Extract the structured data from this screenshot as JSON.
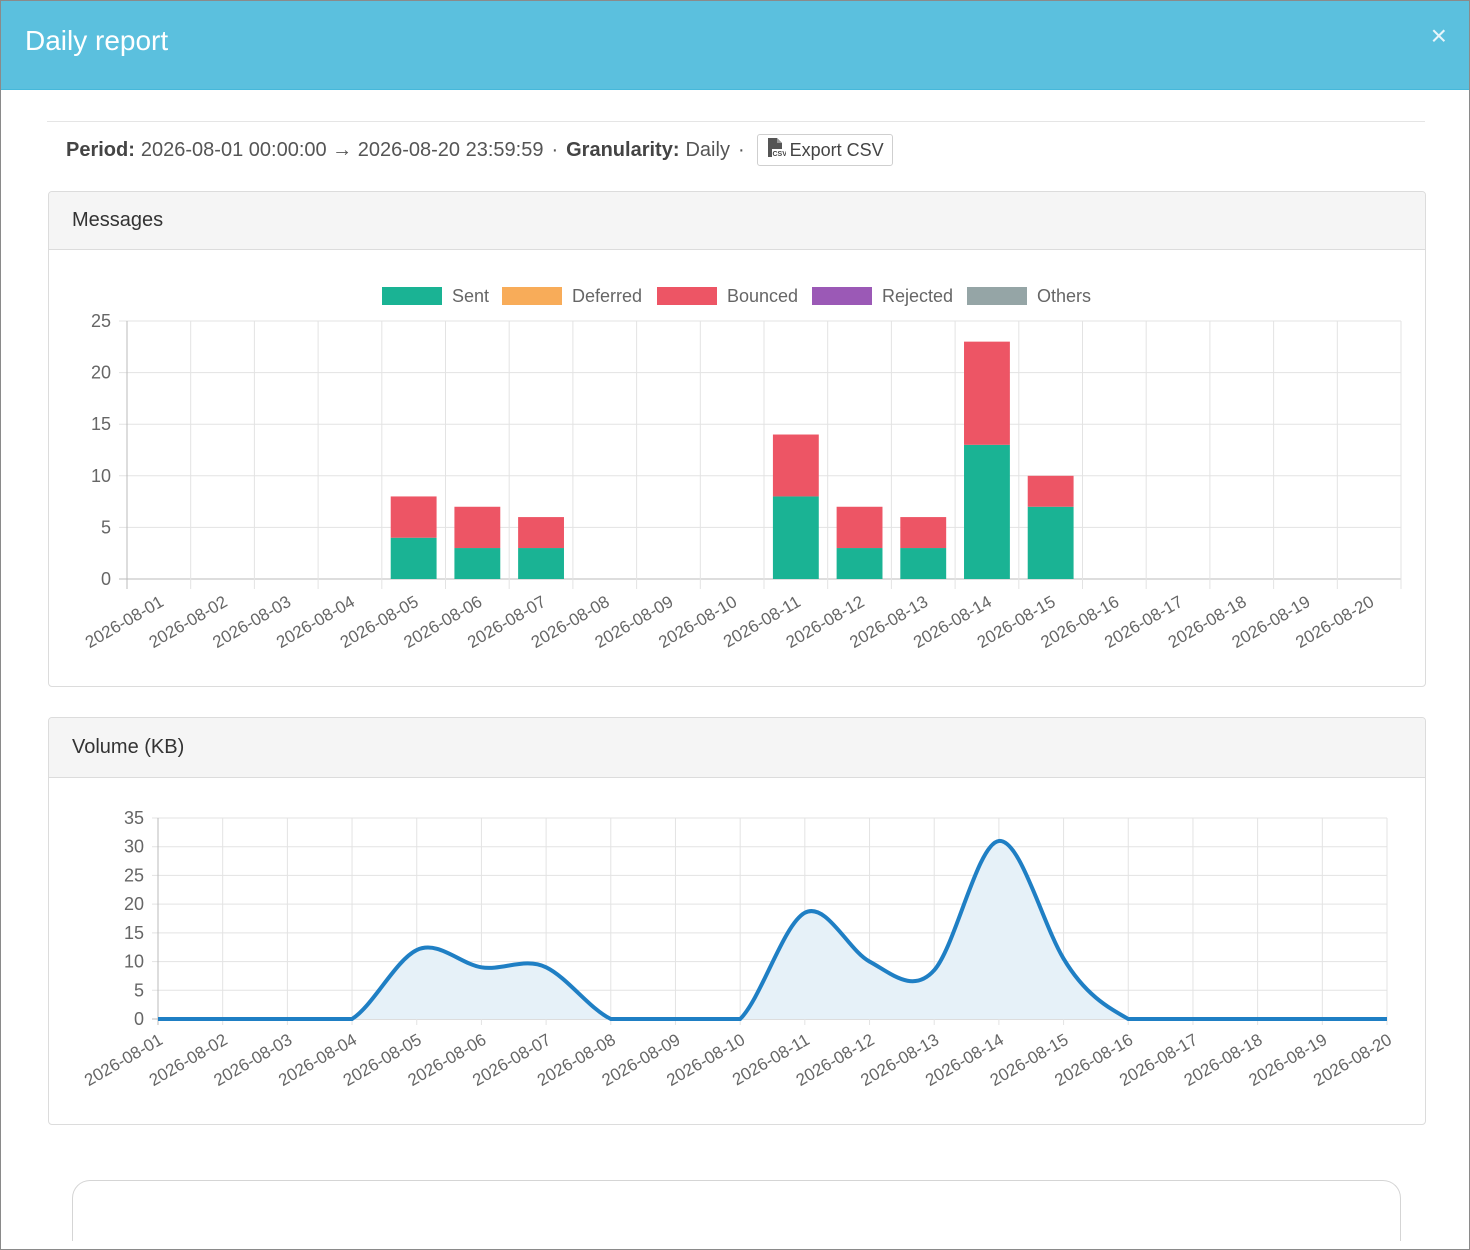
{
  "modal": {
    "title": "Daily report",
    "close_glyph": "×",
    "header_color": "#5bc0de"
  },
  "period": {
    "period_label": "Period:",
    "period_value": "2026-08-01 00:00:00 → 2026-08-20 23:59:59",
    "separator": "·",
    "granularity_label": "Granularity:",
    "granularity_value": "Daily",
    "export_label": "Export CSV",
    "export_icon": "csv-file-icon"
  },
  "messages_panel": {
    "title": "Messages"
  },
  "volume_panel": {
    "title": "Volume (KB)"
  },
  "chart_data": [
    {
      "type": "bar",
      "stacked": true,
      "title": "Messages",
      "categories": [
        "2026-08-01",
        "2026-08-02",
        "2026-08-03",
        "2026-08-04",
        "2026-08-05",
        "2026-08-06",
        "2026-08-07",
        "2026-08-08",
        "2026-08-09",
        "2026-08-10",
        "2026-08-11",
        "2026-08-12",
        "2026-08-13",
        "2026-08-14",
        "2026-08-15",
        "2026-08-16",
        "2026-08-17",
        "2026-08-18",
        "2026-08-19",
        "2026-08-20"
      ],
      "series": [
        {
          "name": "Sent",
          "color": "#1ab394",
          "values": [
            0,
            0,
            0,
            0,
            4,
            3,
            3,
            0,
            0,
            0,
            8,
            3,
            3,
            13,
            7,
            0,
            0,
            0,
            0,
            0
          ]
        },
        {
          "name": "Deferred",
          "color": "#f8ac59",
          "values": [
            0,
            0,
            0,
            0,
            0,
            0,
            0,
            0,
            0,
            0,
            0,
            0,
            0,
            0,
            0,
            0,
            0,
            0,
            0,
            0
          ]
        },
        {
          "name": "Bounced",
          "color": "#ed5565",
          "values": [
            0,
            0,
            0,
            0,
            4,
            4,
            3,
            0,
            0,
            0,
            6,
            4,
            3,
            10,
            3,
            0,
            0,
            0,
            0,
            0
          ]
        },
        {
          "name": "Rejected",
          "color": "#9b59b6",
          "values": [
            0,
            0,
            0,
            0,
            0,
            0,
            0,
            0,
            0,
            0,
            0,
            0,
            0,
            0,
            0,
            0,
            0,
            0,
            0,
            0
          ]
        },
        {
          "name": "Others",
          "color": "#95a5a6",
          "values": [
            0,
            0,
            0,
            0,
            0,
            0,
            0,
            0,
            0,
            0,
            0,
            0,
            0,
            0,
            0,
            0,
            0,
            0,
            0,
            0
          ]
        }
      ],
      "ylim": [
        0,
        25
      ],
      "yticks": [
        0,
        5,
        10,
        15,
        20,
        25
      ],
      "legend": "top-center",
      "grid": true
    },
    {
      "type": "area",
      "title": "Volume (KB)",
      "categories": [
        "2026-08-01",
        "2026-08-02",
        "2026-08-03",
        "2026-08-04",
        "2026-08-05",
        "2026-08-06",
        "2026-08-07",
        "2026-08-08",
        "2026-08-09",
        "2026-08-10",
        "2026-08-11",
        "2026-08-12",
        "2026-08-13",
        "2026-08-14",
        "2026-08-15",
        "2026-08-16",
        "2026-08-17",
        "2026-08-18",
        "2026-08-19",
        "2026-08-20"
      ],
      "series": [
        {
          "color": "#1f7fc4",
          "fill": "#e6f1f8",
          "values": [
            0,
            0,
            0,
            0,
            12,
            9,
            9,
            0,
            0,
            0,
            18.5,
            10,
            8.5,
            31,
            10.5,
            0,
            0,
            0,
            0,
            0
          ]
        }
      ],
      "ylim": [
        0,
        35
      ],
      "yticks": [
        0,
        5,
        10,
        15,
        20,
        25,
        30,
        35
      ],
      "grid": true
    }
  ]
}
